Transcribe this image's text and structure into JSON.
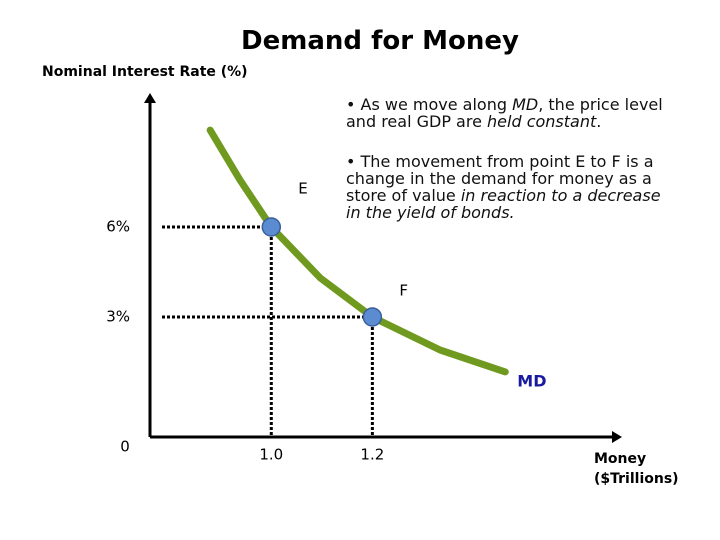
{
  "chart_data": {
    "type": "line",
    "title": "Demand for Money",
    "ylabel": "Nominal Interest Rate (%)",
    "xlabel": "Money ($Trillions)",
    "origin_label": "0",
    "xlim": [
      0.76,
      1.69
    ],
    "ylim": [
      -1,
      10.4
    ],
    "xticks": [
      {
        "value": 1.0,
        "label": "1.0"
      },
      {
        "value": 1.2,
        "label": "1.2"
      }
    ],
    "yticks": [
      {
        "value": 6,
        "label": "6%"
      },
      {
        "value": 3,
        "label": "3%"
      }
    ],
    "grid": false,
    "series": [
      {
        "name": "MD",
        "color": "#6f9a1f",
        "x": [
          0.879,
          0.938,
          1.0,
          1.097,
          1.2,
          1.334,
          1.463
        ],
        "values": [
          9.23,
          7.57,
          6,
          4.3,
          3,
          1.9,
          1.17
        ]
      }
    ],
    "points": [
      {
        "label": "E",
        "x": 1.0,
        "y": 6
      },
      {
        "label": "F",
        "x": 1.2,
        "y": 3
      }
    ],
    "notes": [
      [
        {
          "text": "• As we move along ",
          "italic": false
        },
        {
          "text": "MD",
          "italic": true
        },
        {
          "text": ", the price level and real GDP are ",
          "italic": false
        },
        {
          "text": "held constant",
          "italic": true
        },
        {
          "text": ".",
          "italic": false
        }
      ],
      [
        {
          "text": "• The movement from point E to F is a change in the demand for money as a store of value ",
          "italic": false
        },
        {
          "text": "in reaction to a decrease in the yield of bonds.",
          "italic": true
        }
      ]
    ]
  }
}
